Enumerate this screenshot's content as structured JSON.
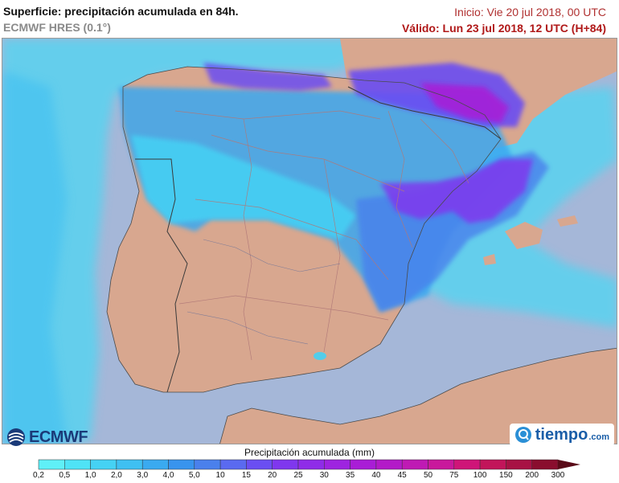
{
  "header": {
    "title": "Superficie: precipitación acumulada en 84h.",
    "model": "ECMWF HRES (0.1°)",
    "init": "Inicio: Vie 20 jul 2018, 00 UTC",
    "valid": "Válido: Lun 23 jul 2018, 12 UTC (H+84)"
  },
  "map": {
    "colors": {
      "sea": "#a5b7d8",
      "land": "#d8a78f",
      "border": "#b07878",
      "coast": "#4a4a4a"
    }
  },
  "logos": {
    "ecmwf": "ECMWF",
    "tiempo": "tiempo",
    "tiempo_domain": ".com"
  },
  "legend": {
    "title": "Precipitación acumulada (mm)",
    "levels": [
      "0,2",
      "0,5",
      "1,0",
      "2,0",
      "3,0",
      "4,0",
      "5,0",
      "10",
      "15",
      "20",
      "25",
      "30",
      "35",
      "40",
      "45",
      "50",
      "75",
      "100",
      "150",
      "200",
      "300"
    ],
    "colors": [
      "#5ff0f7",
      "#4fe3f6",
      "#45d2f4",
      "#3fc0f2",
      "#3aaaf0",
      "#3894ee",
      "#4a80ec",
      "#5a6af0",
      "#6a4ef2",
      "#7f37ee",
      "#8f2ce8",
      "#9e24e0",
      "#a91dd6",
      "#b31ac8",
      "#bf1ab4",
      "#c9189c",
      "#cf1578",
      "#c2155a",
      "#a81244",
      "#8a0e2e"
    ],
    "arrow_color": "#5a0a18"
  }
}
